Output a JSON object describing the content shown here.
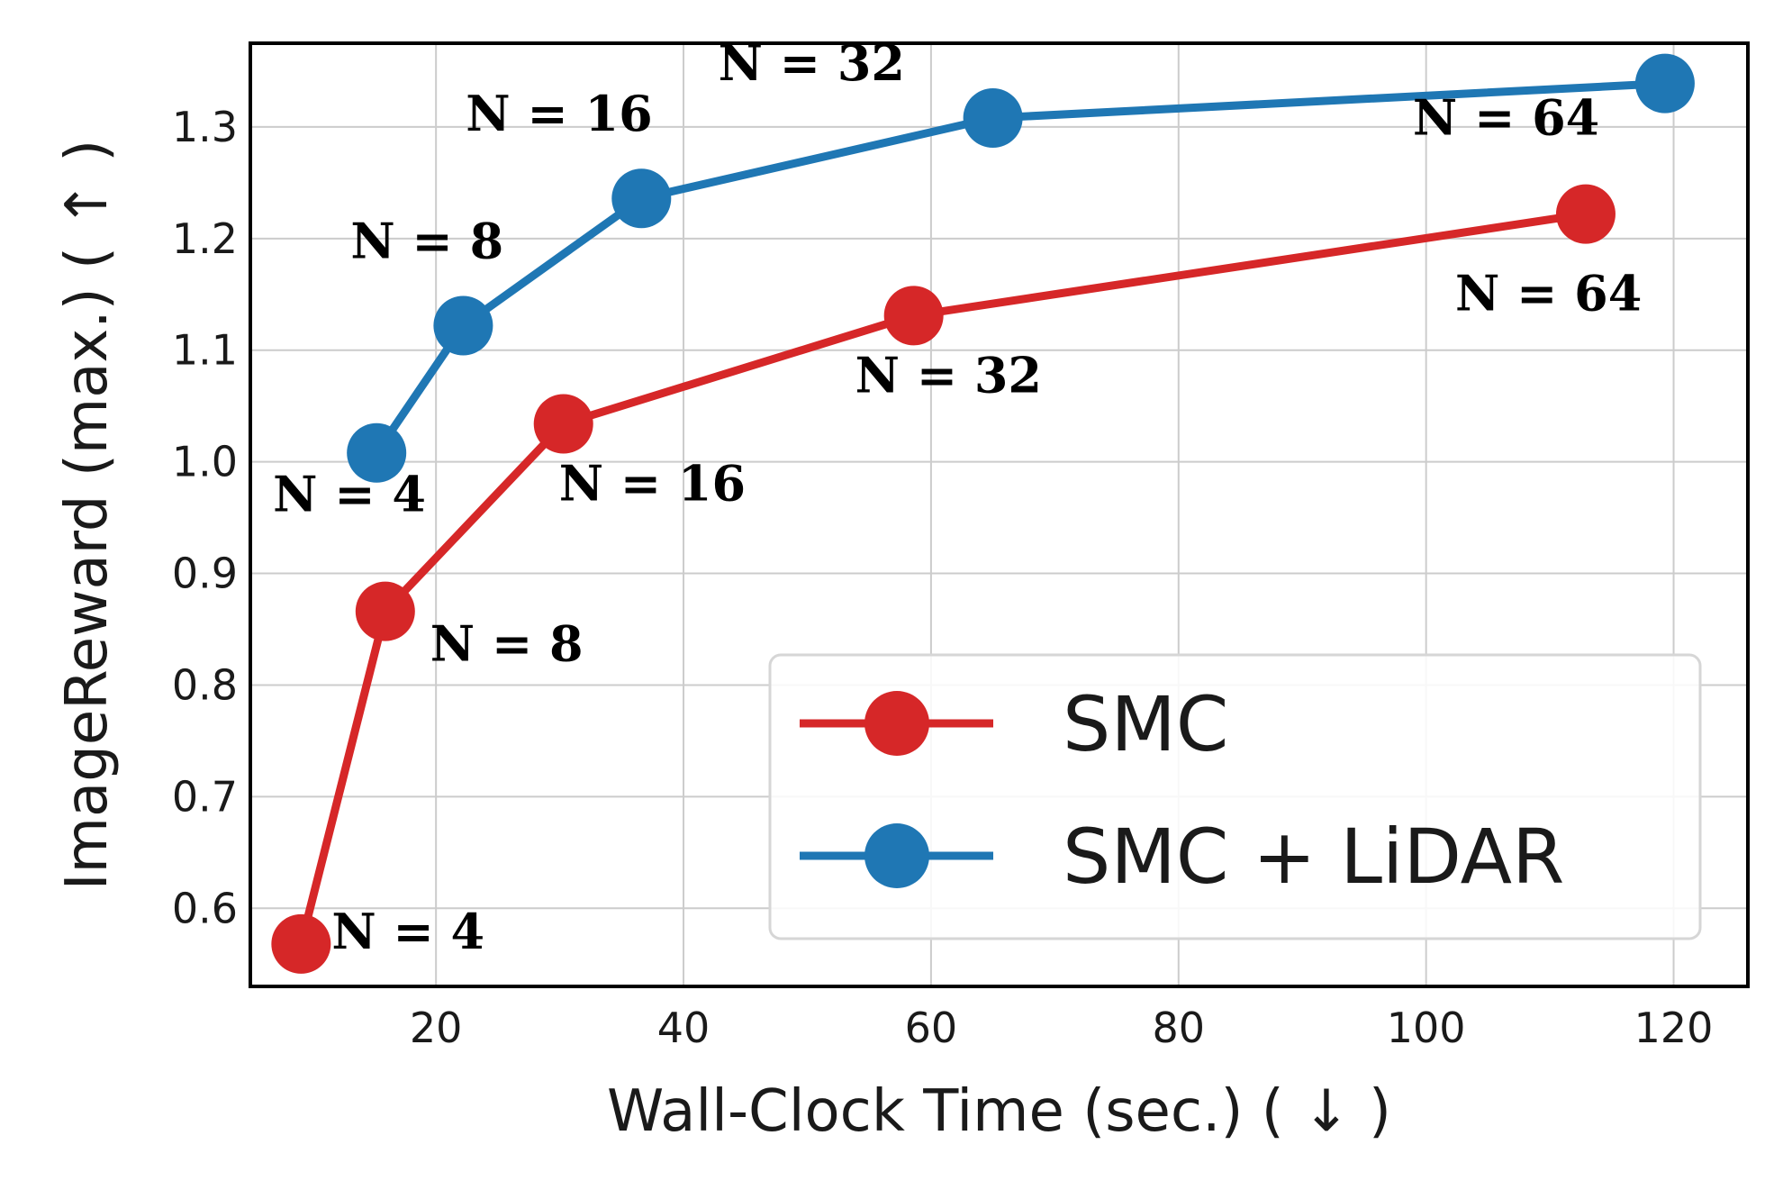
{
  "chart_data": {
    "type": "line",
    "xlabel": "Wall-Clock Time (sec.) ( ↓ )",
    "ylabel": "ImageReward (max.) ( ↑ )",
    "xlim": [
      5,
      126
    ],
    "ylim": [
      0.53,
      1.375
    ],
    "xticks": [
      20,
      40,
      60,
      80,
      100,
      120
    ],
    "yticks": [
      0.6,
      0.7,
      0.8,
      0.9,
      1.0,
      1.1,
      1.2,
      1.3
    ],
    "grid": true,
    "legend_position": "lower-right",
    "series": [
      {
        "name": "SMC",
        "color": "#d62728",
        "points": [
          {
            "x": 9.1,
            "y": 0.568,
            "label": "N = 4"
          },
          {
            "x": 15.9,
            "y": 0.866,
            "label": "N = 8"
          },
          {
            "x": 30.3,
            "y": 1.034,
            "label": "N = 16"
          },
          {
            "x": 58.6,
            "y": 1.131,
            "label": "N = 32"
          },
          {
            "x": 112.9,
            "y": 1.222,
            "label": "N = 64"
          }
        ]
      },
      {
        "name": "SMC + LiDAR",
        "color": "#1f77b4",
        "points": [
          {
            "x": 15.2,
            "y": 1.008,
            "label": "N = 4"
          },
          {
            "x": 22.2,
            "y": 1.122,
            "label": "N = 8"
          },
          {
            "x": 36.6,
            "y": 1.236,
            "label": "N = 16"
          },
          {
            "x": 65.0,
            "y": 1.308,
            "label": "N = 32"
          },
          {
            "x": 119.3,
            "y": 1.339,
            "label": "N = 64"
          }
        ]
      }
    ]
  }
}
